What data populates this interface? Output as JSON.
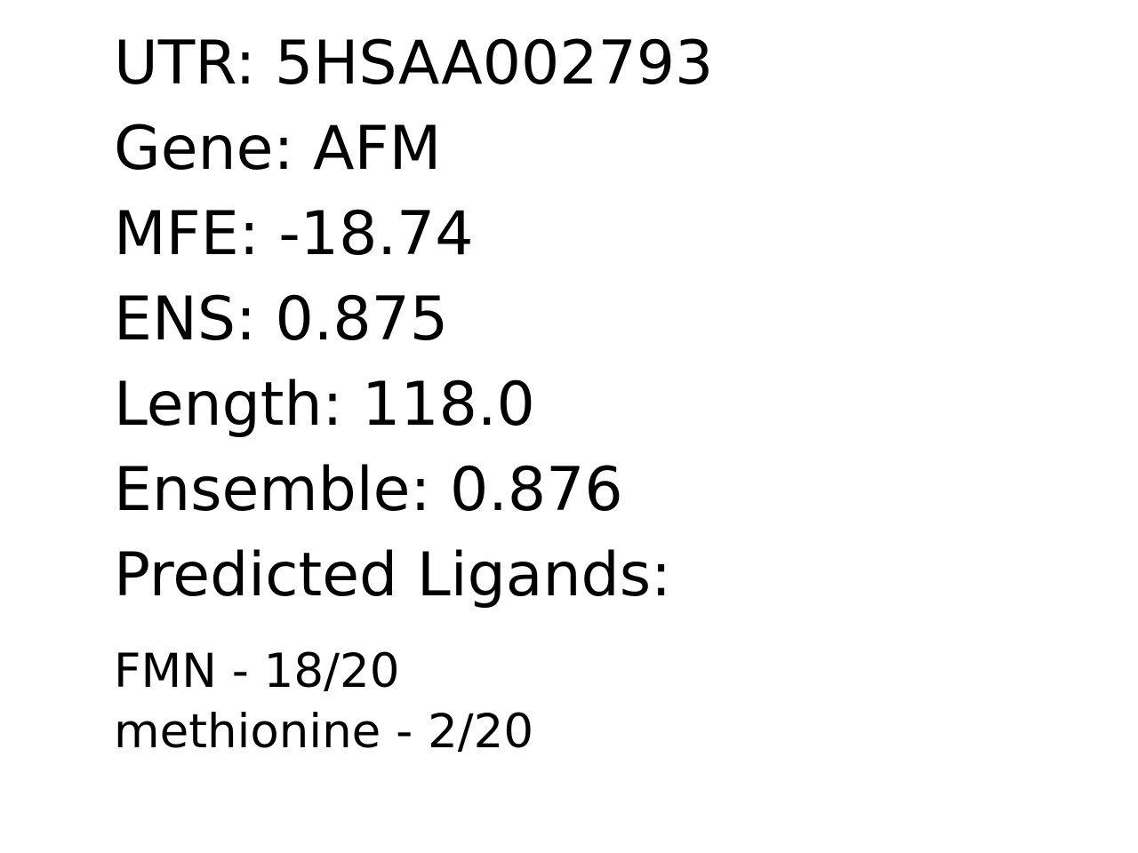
{
  "record": {
    "utr": "UTR: 5HSAA002793",
    "gene": "Gene: AFM",
    "mfe": "MFE: -18.74",
    "ens": "ENS: 0.875",
    "length": "Length: 118.0",
    "ensemble": "Ensemble: 0.876"
  },
  "ligands": {
    "heading": "Predicted Ligands:",
    "items": [
      "FMN - 18/20",
      "methionine - 2/20"
    ]
  }
}
